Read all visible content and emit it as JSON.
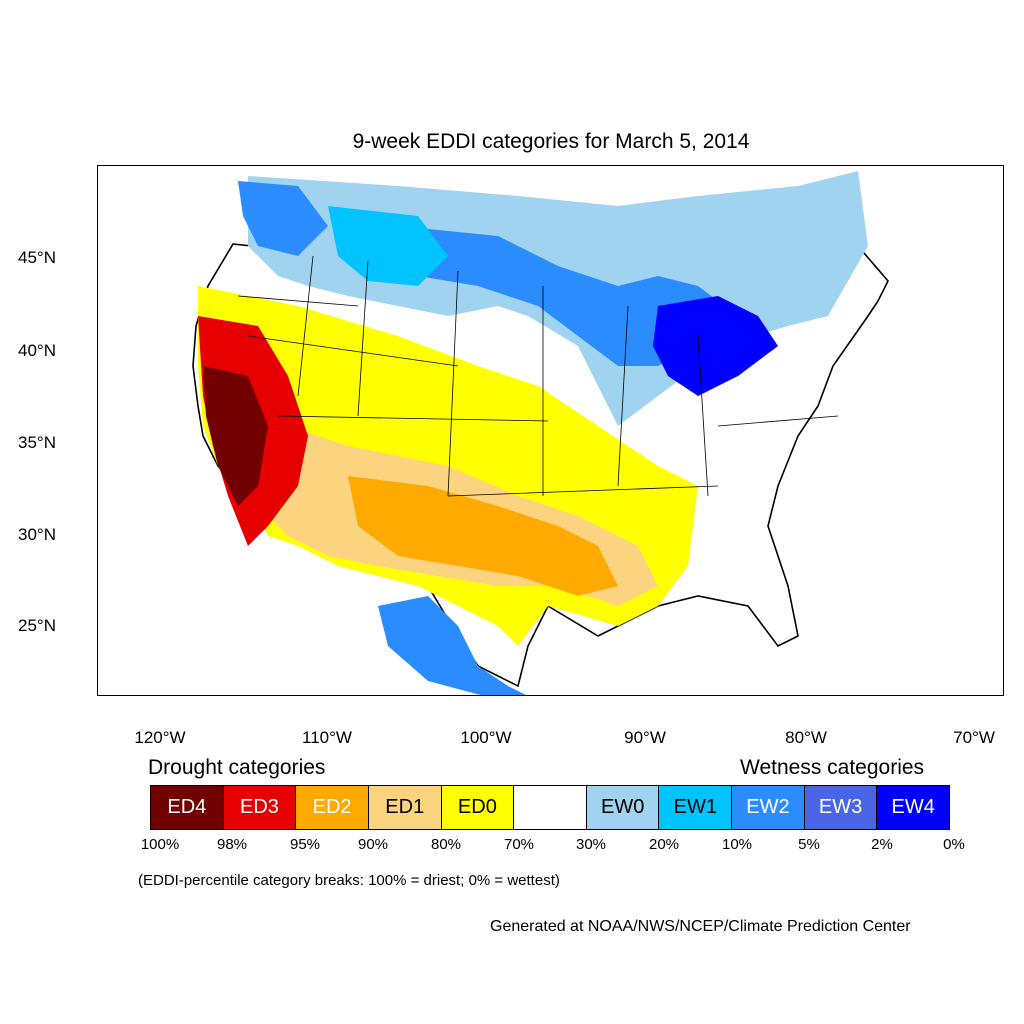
{
  "title": "9-week EDDI categories for March 5, 2014",
  "lat_labels": [
    "45°N",
    "40°N",
    "35°N",
    "30°N",
    "25°N"
  ],
  "lon_labels": [
    "120°W",
    "110°W",
    "100°W",
    "90°W",
    "80°W",
    "70°W"
  ],
  "legend": {
    "drought_heading": "Drought categories",
    "wetness_heading": "Wetness categories",
    "categories": [
      {
        "label": "ED4",
        "color": "#730000",
        "text_color": "#ffffff"
      },
      {
        "label": "ED3",
        "color": "#e60000",
        "text_color": "#ffffff"
      },
      {
        "label": "ED2",
        "color": "#ffaa00",
        "text_color": "#ffffff"
      },
      {
        "label": "ED1",
        "color": "#fcd37f",
        "text_color": "#000000"
      },
      {
        "label": "ED0",
        "color": "#ffff00",
        "text_color": "#000000"
      },
      {
        "label": "",
        "color": "#ffffff",
        "text_color": "#000000"
      },
      {
        "label": "EW0",
        "color": "#9fd3f0",
        "text_color": "#000000"
      },
      {
        "label": "EW1",
        "color": "#00c3ff",
        "text_color": "#000000"
      },
      {
        "label": "EW2",
        "color": "#2b8cff",
        "text_color": "#ffffff"
      },
      {
        "label": "EW3",
        "color": "#4a64e6",
        "text_color": "#ffffff"
      },
      {
        "label": "EW4",
        "color": "#0000ff",
        "text_color": "#ffffff"
      }
    ],
    "breaks": [
      "100%",
      "98%",
      "95%",
      "90%",
      "80%",
      "70%",
      "30%",
      "20%",
      "10%",
      "5%",
      "2%",
      "0%"
    ]
  },
  "note": "(EDDI-percentile category breaks: 100% = driest; 0% = wettest)",
  "credit": "Generated at NOAA/NWS/NCEP/Climate Prediction Center"
}
